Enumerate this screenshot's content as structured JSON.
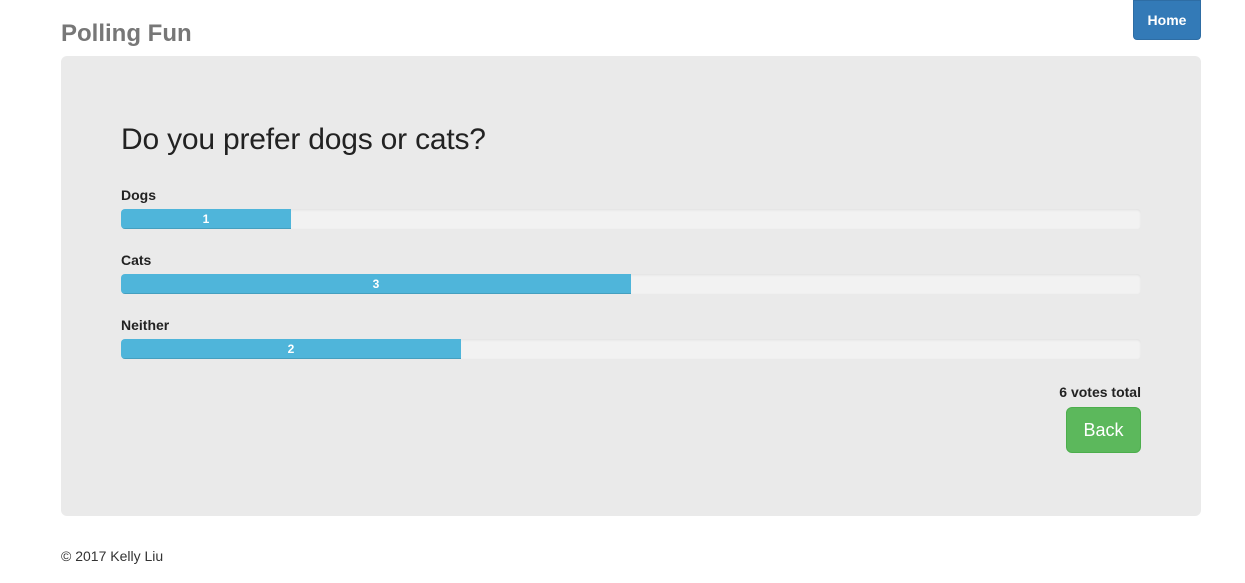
{
  "header": {
    "site_title": "Polling Fun",
    "home_label": "Home"
  },
  "poll": {
    "question": "Do you prefer dogs or cats?",
    "max_votes": 6,
    "options": [
      {
        "label": "Dogs",
        "votes": 1,
        "votes_text": "1"
      },
      {
        "label": "Cats",
        "votes": 3,
        "votes_text": "3"
      },
      {
        "label": "Neither",
        "votes": 2,
        "votes_text": "2"
      }
    ],
    "total_text": "6 votes total",
    "back_label": "Back"
  },
  "footer": {
    "copyright": "© 2017 Kelly Liu"
  },
  "colors": {
    "bar": "#4fb5da",
    "primary": "#337ab7",
    "success": "#5cb85c",
    "panel": "#eaeaea"
  }
}
